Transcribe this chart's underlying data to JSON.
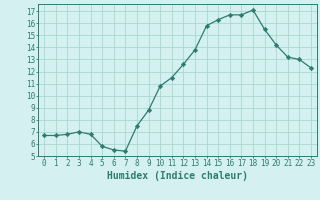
{
  "x": [
    0,
    1,
    2,
    3,
    4,
    5,
    6,
    7,
    8,
    9,
    10,
    11,
    12,
    13,
    14,
    15,
    16,
    17,
    18,
    19,
    20,
    21,
    22,
    23
  ],
  "y": [
    6.7,
    6.7,
    6.8,
    7.0,
    6.8,
    5.8,
    5.5,
    5.4,
    7.5,
    8.8,
    10.8,
    11.5,
    12.6,
    13.8,
    15.8,
    16.3,
    16.7,
    16.7,
    17.1,
    15.5,
    14.2,
    13.2,
    13.0,
    12.3
  ],
  "line_color": "#2d7d6e",
  "marker": "D",
  "marker_size": 2.2,
  "bg_color": "#d4f0f0",
  "grid_color": "#a8d8d0",
  "xlabel": "Humidex (Indice chaleur)",
  "xlim": [
    -0.5,
    23.5
  ],
  "ylim": [
    5,
    17.6
  ],
  "xtick_labels": [
    "0",
    "1",
    "2",
    "3",
    "4",
    "5",
    "6",
    "7",
    "8",
    "9",
    "10",
    "11",
    "12",
    "13",
    "14",
    "15",
    "16",
    "17",
    "18",
    "19",
    "20",
    "21",
    "22",
    "23"
  ],
  "yticks": [
    5,
    6,
    7,
    8,
    9,
    10,
    11,
    12,
    13,
    14,
    15,
    16,
    17
  ],
  "tick_fontsize": 5.5,
  "xlabel_fontsize": 7.0,
  "axis_color": "#2d7d6e"
}
